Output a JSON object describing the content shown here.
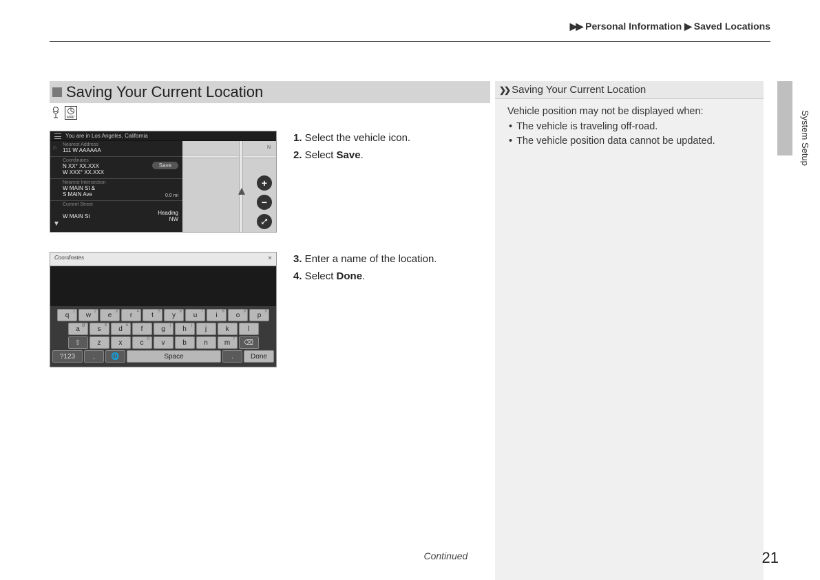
{
  "breadcrumb": {
    "arrows": "▶▶",
    "item1": "Personal Information",
    "sep": "▶",
    "item2": "Saved Locations"
  },
  "side_tab_label": "System Setup",
  "section_title": "Saving Your Current Location",
  "icons": {
    "map_label": "MAP"
  },
  "shot1": {
    "topbar_text": "You are in Los Angeles, California",
    "nearest_address_lbl": "Nearest Address",
    "nearest_address_val": "111 W AAAAAA",
    "coordinates_lbl": "Coordinates",
    "coord_lat": "N XX° XX.XXX",
    "coord_lon": "W XXX° XX.XXX",
    "save_btn": "Save",
    "nearest_intersection_lbl": "Nearest Intersection",
    "intersection1": "W MAIN St &",
    "intersection2": "S MAIN Ave",
    "distance": "0.0 mi",
    "current_street_lbl": "Current Street",
    "current_street_val": "W MAIN St",
    "heading_lbl": "Heading",
    "heading_val": "NW",
    "north": "N",
    "zoom_in": "+",
    "zoom_out": "−",
    "fullscreen": "⤢"
  },
  "steps1": {
    "s1_num": "1.",
    "s1_text": " Select the vehicle icon.",
    "s2_num": "2.",
    "s2_pre": " Select ",
    "s2_kw": "Save",
    "s2_post": "."
  },
  "shot2": {
    "input_placeholder": "Coordinates",
    "close": "×",
    "row1": [
      "q",
      "w",
      "e",
      "r",
      "t",
      "y",
      "u",
      "i",
      "o",
      "p"
    ],
    "row1_sup": [
      "1",
      "2",
      "3",
      "4",
      "5",
      "6",
      "7",
      "8",
      "9",
      "0"
    ],
    "row2": [
      "a",
      "s",
      "d",
      "f",
      "g",
      "h",
      "j",
      "k",
      "l"
    ],
    "row2_sup": [
      "@",
      "$",
      "&",
      " ",
      "(",
      ")",
      " ",
      " ",
      " "
    ],
    "row3_shift": "⇧",
    "row3": [
      "z",
      "x",
      "c",
      "v",
      "b",
      "n",
      "m"
    ],
    "row3_sup": [
      " ",
      " ",
      "©",
      " ",
      " ",
      " ",
      "?"
    ],
    "row3_back": "⌫",
    "row4_sym": "?123",
    "row4_comma": ",",
    "row4_globe": "🌐",
    "row4_space": "Space",
    "row4_period": ".",
    "row4_done": "Done"
  },
  "steps2": {
    "s3_num": "3.",
    "s3_text": " Enter a name of the location.",
    "s4_num": "4.",
    "s4_pre": " Select ",
    "s4_kw": "Done",
    "s4_post": "."
  },
  "note": {
    "chev": "❯❯",
    "title": "Saving Your Current Location",
    "intro": "Vehicle position may not be displayed when:",
    "b1": "The vehicle is traveling off-road.",
    "b2": "The vehicle position data cannot be updated."
  },
  "footer": {
    "continued": "Continued",
    "page": "21"
  }
}
